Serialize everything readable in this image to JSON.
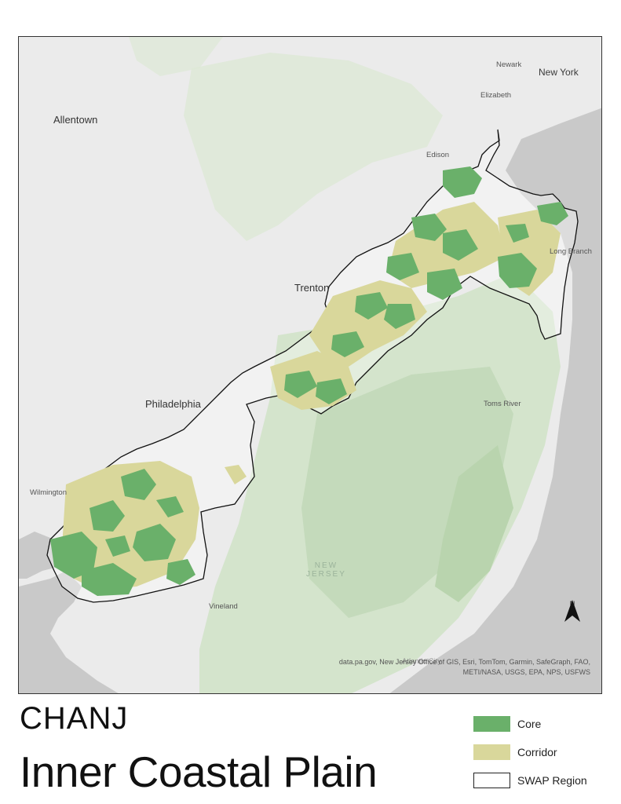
{
  "map": {
    "places": {
      "new_york": "New York",
      "newark": "Newark",
      "elizabeth": "Elizabeth",
      "allentown": "Allentown",
      "edison": "Edison",
      "long_branch": "Long Branch",
      "trenton": "Trenton",
      "philadelphia": "Philadelphia",
      "toms_river": "Toms River",
      "wilmington": "Wilmington",
      "new_jersey_1": "NEW",
      "new_jersey_2": "JERSEY",
      "vineland": "Vineland",
      "atlantic_city": "Atlantic City"
    },
    "attribution_line1": "data.pa.gov, New Jersey Office of GIS, Esri, TomTom, Garmin, SafeGraph, FAO,",
    "attribution_line2": "METI/NASA, USGS, EPA, NPS, USFWS",
    "north_label": "N",
    "colors": {
      "core": "#6ab06a",
      "corridor": "#d9d79b",
      "water": "#c9c9c9",
      "land": "#e9e9e9",
      "forest": "#cfe0c8"
    }
  },
  "title": {
    "line1": "CHANJ",
    "line2": "Inner Coastal Plain"
  },
  "legend": {
    "items": [
      {
        "label": "Core",
        "color": "#6ab06a"
      },
      {
        "label": "Corridor",
        "color": "#d9d79b"
      },
      {
        "label": "SWAP Region",
        "color": "#ffffff"
      }
    ]
  }
}
